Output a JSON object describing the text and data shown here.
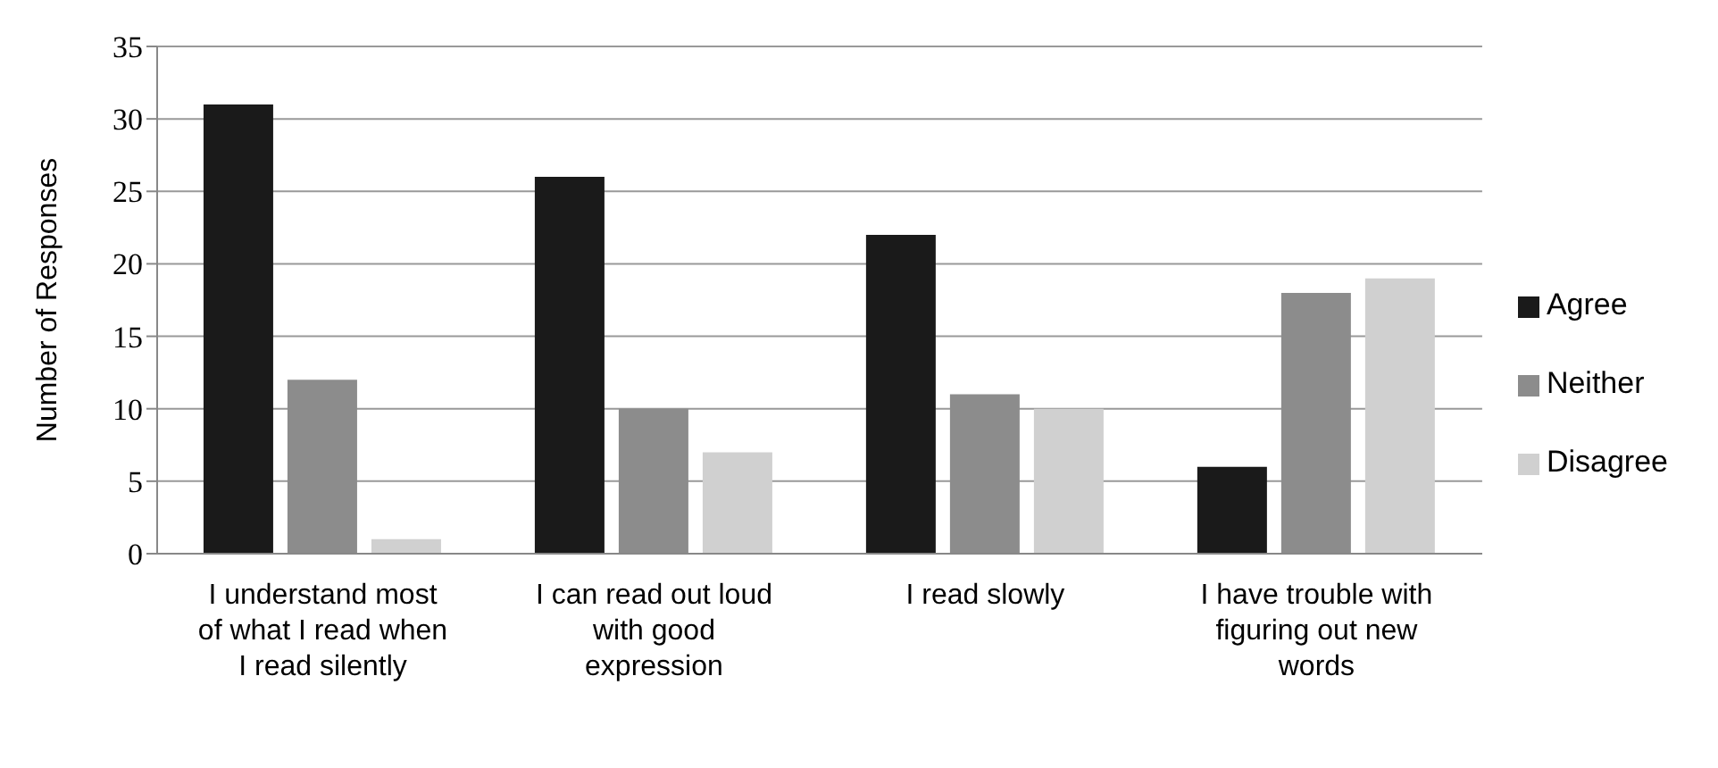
{
  "chart_data": {
    "type": "bar",
    "ylabel": "Number of Responses",
    "categories": [
      "I understand most of what I read when I read silently",
      "I can read out loud with good expression",
      "I read slowly",
      "I have trouble with figuring out new words"
    ],
    "series": [
      {
        "name": "Agree",
        "color": "#1a1a1a",
        "values": [
          31,
          26,
          22,
          6
        ]
      },
      {
        "name": "Neither",
        "color": "#8c8c8c",
        "values": [
          12,
          10,
          11,
          18
        ]
      },
      {
        "name": "Disagree",
        "color": "#d0d0d0",
        "values": [
          1,
          7,
          10,
          19
        ]
      }
    ],
    "ylim": [
      0,
      35
    ],
    "yticks": [
      0,
      5,
      10,
      15,
      20,
      25,
      30,
      35
    ],
    "grid": "y",
    "legend": "right"
  }
}
